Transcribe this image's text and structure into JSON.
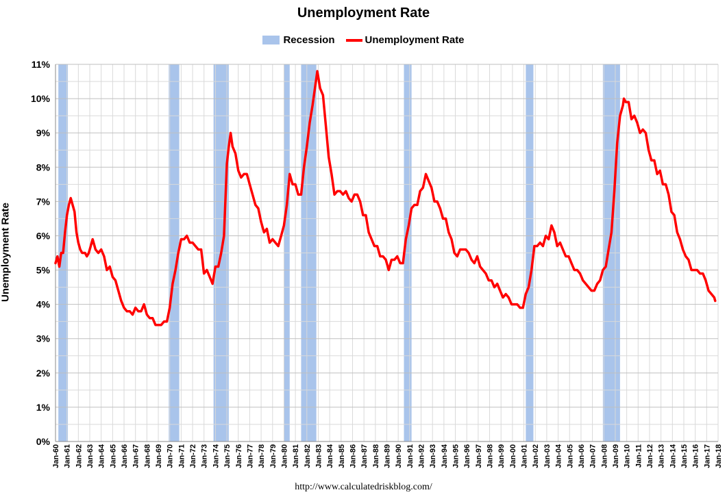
{
  "chart_data": {
    "type": "line",
    "title": "Unemployment Rate",
    "ylabel": "Unemployment Rate",
    "xlabel": "",
    "ylim": [
      0,
      11
    ],
    "yticks": [
      "0%",
      "1%",
      "2%",
      "3%",
      "4%",
      "5%",
      "6%",
      "7%",
      "8%",
      "9%",
      "10%",
      "11%"
    ],
    "xlim": [
      1960,
      2018
    ],
    "xticks": [
      "Jan-60",
      "Jan-61",
      "Jan-62",
      "Jan-63",
      "Jan-64",
      "Jan-65",
      "Jan-66",
      "Jan-67",
      "Jan-68",
      "Jan-69",
      "Jan-70",
      "Jan-71",
      "Jan-72",
      "Jan-73",
      "Jan-74",
      "Jan-75",
      "Jan-76",
      "Jan-77",
      "Jan-78",
      "Jan-79",
      "Jan-80",
      "Jan-81",
      "Jan-82",
      "Jan-83",
      "Jan-84",
      "Jan-85",
      "Jan-86",
      "Jan-87",
      "Jan-88",
      "Jan-89",
      "Jan-90",
      "Jan-91",
      "Jan-92",
      "Jan-93",
      "Jan-94",
      "Jan-95",
      "Jan-96",
      "Jan-97",
      "Jan-98",
      "Jan-99",
      "Jan-00",
      "Jan-01",
      "Jan-02",
      "Jan-03",
      "Jan-04",
      "Jan-05",
      "Jan-06",
      "Jan-07",
      "Jan-08",
      "Jan-09",
      "Jan-10",
      "Jan-11",
      "Jan-12",
      "Jan-13",
      "Jan-14",
      "Jan-15",
      "Jan-16",
      "Jan-17",
      "Jan-18"
    ],
    "grid": true,
    "legend_position": "top-center",
    "legend": [
      "Recession",
      "Unemployment Rate"
    ],
    "colors": {
      "line": "#ff0000",
      "recession": "#a9c4eb",
      "grid": "#d9d9d9",
      "major_grid": "#bfbfbf"
    },
    "recessions": [
      {
        "start": "1960-04",
        "end": "1961-02"
      },
      {
        "start": "1969-12",
        "end": "1970-11"
      },
      {
        "start": "1973-11",
        "end": "1975-03"
      },
      {
        "start": "1980-01",
        "end": "1980-07"
      },
      {
        "start": "1981-07",
        "end": "1982-11"
      },
      {
        "start": "1990-07",
        "end": "1991-03"
      },
      {
        "start": "2001-03",
        "end": "2001-11"
      },
      {
        "start": "2007-12",
        "end": "2009-06"
      }
    ],
    "series": [
      {
        "name": "Unemployment Rate",
        "points": [
          [
            "1960-01",
            5.2
          ],
          [
            "1960-03",
            5.4
          ],
          [
            "1960-05",
            5.1
          ],
          [
            "1960-07",
            5.5
          ],
          [
            "1960-09",
            5.5
          ],
          [
            "1960-11",
            6.1
          ],
          [
            "1961-01",
            6.6
          ],
          [
            "1961-03",
            6.9
          ],
          [
            "1961-05",
            7.1
          ],
          [
            "1961-07",
            6.9
          ],
          [
            "1961-09",
            6.7
          ],
          [
            "1961-11",
            6.1
          ],
          [
            "1962-01",
            5.8
          ],
          [
            "1962-03",
            5.6
          ],
          [
            "1962-05",
            5.5
          ],
          [
            "1962-08",
            5.5
          ],
          [
            "1962-10",
            5.4
          ],
          [
            "1962-12",
            5.5
          ],
          [
            "1963-02",
            5.7
          ],
          [
            "1963-04",
            5.9
          ],
          [
            "1963-07",
            5.6
          ],
          [
            "1963-10",
            5.5
          ],
          [
            "1964-01",
            5.6
          ],
          [
            "1964-04",
            5.4
          ],
          [
            "1964-07",
            5.0
          ],
          [
            "1964-10",
            5.1
          ],
          [
            "1965-01",
            4.8
          ],
          [
            "1965-04",
            4.7
          ],
          [
            "1965-07",
            4.4
          ],
          [
            "1965-10",
            4.1
          ],
          [
            "1966-01",
            3.9
          ],
          [
            "1966-04",
            3.8
          ],
          [
            "1966-07",
            3.8
          ],
          [
            "1966-10",
            3.7
          ],
          [
            "1967-01",
            3.9
          ],
          [
            "1967-04",
            3.8
          ],
          [
            "1967-07",
            3.8
          ],
          [
            "1967-10",
            4.0
          ],
          [
            "1968-01",
            3.7
          ],
          [
            "1968-04",
            3.6
          ],
          [
            "1968-07",
            3.6
          ],
          [
            "1968-10",
            3.4
          ],
          [
            "1969-01",
            3.4
          ],
          [
            "1969-04",
            3.4
          ],
          [
            "1969-07",
            3.5
          ],
          [
            "1969-10",
            3.5
          ],
          [
            "1970-01",
            3.9
          ],
          [
            "1970-04",
            4.6
          ],
          [
            "1970-07",
            5.0
          ],
          [
            "1970-10",
            5.5
          ],
          [
            "1971-01",
            5.9
          ],
          [
            "1971-04",
            5.9
          ],
          [
            "1971-07",
            6.0
          ],
          [
            "1971-10",
            5.8
          ],
          [
            "1972-01",
            5.8
          ],
          [
            "1972-04",
            5.7
          ],
          [
            "1972-07",
            5.6
          ],
          [
            "1972-10",
            5.6
          ],
          [
            "1973-01",
            4.9
          ],
          [
            "1973-04",
            5.0
          ],
          [
            "1973-07",
            4.8
          ],
          [
            "1973-10",
            4.6
          ],
          [
            "1974-01",
            5.1
          ],
          [
            "1974-04",
            5.1
          ],
          [
            "1974-07",
            5.5
          ],
          [
            "1974-10",
            6.0
          ],
          [
            "1975-01",
            8.1
          ],
          [
            "1975-03",
            8.6
          ],
          [
            "1975-05",
            9.0
          ],
          [
            "1975-07",
            8.6
          ],
          [
            "1975-10",
            8.4
          ],
          [
            "1976-01",
            7.9
          ],
          [
            "1976-04",
            7.7
          ],
          [
            "1976-07",
            7.8
          ],
          [
            "1976-10",
            7.8
          ],
          [
            "1977-01",
            7.5
          ],
          [
            "1977-04",
            7.2
          ],
          [
            "1977-07",
            6.9
          ],
          [
            "1977-10",
            6.8
          ],
          [
            "1978-01",
            6.4
          ],
          [
            "1978-04",
            6.1
          ],
          [
            "1978-07",
            6.2
          ],
          [
            "1978-10",
            5.8
          ],
          [
            "1979-01",
            5.9
          ],
          [
            "1979-04",
            5.8
          ],
          [
            "1979-07",
            5.7
          ],
          [
            "1979-10",
            6.0
          ],
          [
            "1980-01",
            6.3
          ],
          [
            "1980-04",
            6.9
          ],
          [
            "1980-07",
            7.8
          ],
          [
            "1980-10",
            7.5
          ],
          [
            "1981-01",
            7.5
          ],
          [
            "1981-04",
            7.2
          ],
          [
            "1981-07",
            7.2
          ],
          [
            "1981-10",
            8.0
          ],
          [
            "1982-01",
            8.6
          ],
          [
            "1982-04",
            9.3
          ],
          [
            "1982-07",
            9.8
          ],
          [
            "1982-10",
            10.4
          ],
          [
            "1982-12",
            10.8
          ],
          [
            "1983-03",
            10.3
          ],
          [
            "1983-06",
            10.1
          ],
          [
            "1983-09",
            9.2
          ],
          [
            "1983-12",
            8.3
          ],
          [
            "1984-03",
            7.8
          ],
          [
            "1984-06",
            7.2
          ],
          [
            "1984-09",
            7.3
          ],
          [
            "1984-12",
            7.3
          ],
          [
            "1985-03",
            7.2
          ],
          [
            "1985-06",
            7.3
          ],
          [
            "1985-09",
            7.1
          ],
          [
            "1985-12",
            7.0
          ],
          [
            "1986-03",
            7.2
          ],
          [
            "1986-06",
            7.2
          ],
          [
            "1986-09",
            7.0
          ],
          [
            "1986-12",
            6.6
          ],
          [
            "1987-03",
            6.6
          ],
          [
            "1987-06",
            6.1
          ],
          [
            "1987-09",
            5.9
          ],
          [
            "1987-12",
            5.7
          ],
          [
            "1988-03",
            5.7
          ],
          [
            "1988-06",
            5.4
          ],
          [
            "1988-09",
            5.4
          ],
          [
            "1988-12",
            5.3
          ],
          [
            "1989-03",
            5.0
          ],
          [
            "1989-06",
            5.3
          ],
          [
            "1989-09",
            5.3
          ],
          [
            "1989-12",
            5.4
          ],
          [
            "1990-03",
            5.2
          ],
          [
            "1990-06",
            5.2
          ],
          [
            "1990-09",
            5.9
          ],
          [
            "1990-12",
            6.3
          ],
          [
            "1991-03",
            6.8
          ],
          [
            "1991-06",
            6.9
          ],
          [
            "1991-09",
            6.9
          ],
          [
            "1991-12",
            7.3
          ],
          [
            "1992-03",
            7.4
          ],
          [
            "1992-06",
            7.8
          ],
          [
            "1992-09",
            7.6
          ],
          [
            "1992-12",
            7.4
          ],
          [
            "1993-03",
            7.0
          ],
          [
            "1993-06",
            7.0
          ],
          [
            "1993-09",
            6.8
          ],
          [
            "1993-12",
            6.5
          ],
          [
            "1994-03",
            6.5
          ],
          [
            "1994-06",
            6.1
          ],
          [
            "1994-09",
            5.9
          ],
          [
            "1994-12",
            5.5
          ],
          [
            "1995-03",
            5.4
          ],
          [
            "1995-06",
            5.6
          ],
          [
            "1995-09",
            5.6
          ],
          [
            "1995-12",
            5.6
          ],
          [
            "1996-03",
            5.5
          ],
          [
            "1996-06",
            5.3
          ],
          [
            "1996-09",
            5.2
          ],
          [
            "1996-12",
            5.4
          ],
          [
            "1997-03",
            5.1
          ],
          [
            "1997-06",
            5.0
          ],
          [
            "1997-09",
            4.9
          ],
          [
            "1997-12",
            4.7
          ],
          [
            "1998-03",
            4.7
          ],
          [
            "1998-06",
            4.5
          ],
          [
            "1998-09",
            4.6
          ],
          [
            "1998-12",
            4.4
          ],
          [
            "1999-03",
            4.2
          ],
          [
            "1999-06",
            4.3
          ],
          [
            "1999-09",
            4.2
          ],
          [
            "1999-12",
            4.0
          ],
          [
            "2000-03",
            4.0
          ],
          [
            "2000-06",
            4.0
          ],
          [
            "2000-09",
            3.9
          ],
          [
            "2000-12",
            3.9
          ],
          [
            "2001-03",
            4.3
          ],
          [
            "2001-06",
            4.5
          ],
          [
            "2001-09",
            5.0
          ],
          [
            "2001-12",
            5.7
          ],
          [
            "2002-03",
            5.7
          ],
          [
            "2002-06",
            5.8
          ],
          [
            "2002-09",
            5.7
          ],
          [
            "2002-12",
            6.0
          ],
          [
            "2003-03",
            5.9
          ],
          [
            "2003-06",
            6.3
          ],
          [
            "2003-09",
            6.1
          ],
          [
            "2003-12",
            5.7
          ],
          [
            "2004-03",
            5.8
          ],
          [
            "2004-06",
            5.6
          ],
          [
            "2004-09",
            5.4
          ],
          [
            "2004-12",
            5.4
          ],
          [
            "2005-03",
            5.2
          ],
          [
            "2005-06",
            5.0
          ],
          [
            "2005-09",
            5.0
          ],
          [
            "2005-12",
            4.9
          ],
          [
            "2006-03",
            4.7
          ],
          [
            "2006-06",
            4.6
          ],
          [
            "2006-09",
            4.5
          ],
          [
            "2006-12",
            4.4
          ],
          [
            "2007-03",
            4.4
          ],
          [
            "2007-06",
            4.6
          ],
          [
            "2007-09",
            4.7
          ],
          [
            "2007-12",
            5.0
          ],
          [
            "2008-03",
            5.1
          ],
          [
            "2008-06",
            5.6
          ],
          [
            "2008-09",
            6.1
          ],
          [
            "2008-12",
            7.3
          ],
          [
            "2009-03",
            8.7
          ],
          [
            "2009-06",
            9.5
          ],
          [
            "2009-09",
            9.8
          ],
          [
            "2009-10",
            10.0
          ],
          [
            "2009-12",
            9.9
          ],
          [
            "2010-03",
            9.9
          ],
          [
            "2010-06",
            9.4
          ],
          [
            "2010-09",
            9.5
          ],
          [
            "2010-12",
            9.3
          ],
          [
            "2011-03",
            9.0
          ],
          [
            "2011-06",
            9.1
          ],
          [
            "2011-09",
            9.0
          ],
          [
            "2011-12",
            8.5
          ],
          [
            "2012-03",
            8.2
          ],
          [
            "2012-06",
            8.2
          ],
          [
            "2012-09",
            7.8
          ],
          [
            "2012-12",
            7.9
          ],
          [
            "2013-03",
            7.5
          ],
          [
            "2013-06",
            7.5
          ],
          [
            "2013-09",
            7.2
          ],
          [
            "2013-12",
            6.7
          ],
          [
            "2014-03",
            6.6
          ],
          [
            "2014-06",
            6.1
          ],
          [
            "2014-09",
            5.9
          ],
          [
            "2014-12",
            5.6
          ],
          [
            "2015-03",
            5.4
          ],
          [
            "2015-06",
            5.3
          ],
          [
            "2015-09",
            5.0
          ],
          [
            "2015-12",
            5.0
          ],
          [
            "2016-03",
            5.0
          ],
          [
            "2016-06",
            4.9
          ],
          [
            "2016-09",
            4.9
          ],
          [
            "2016-12",
            4.7
          ],
          [
            "2017-03",
            4.4
          ],
          [
            "2017-06",
            4.3
          ],
          [
            "2017-09",
            4.2
          ],
          [
            "2017-10",
            4.1
          ]
        ]
      }
    ]
  },
  "legend": {
    "recession_label": "Recession",
    "line_label": "Unemployment Rate"
  },
  "footer": {
    "source": "http://www.calculatedriskblog.com/"
  }
}
